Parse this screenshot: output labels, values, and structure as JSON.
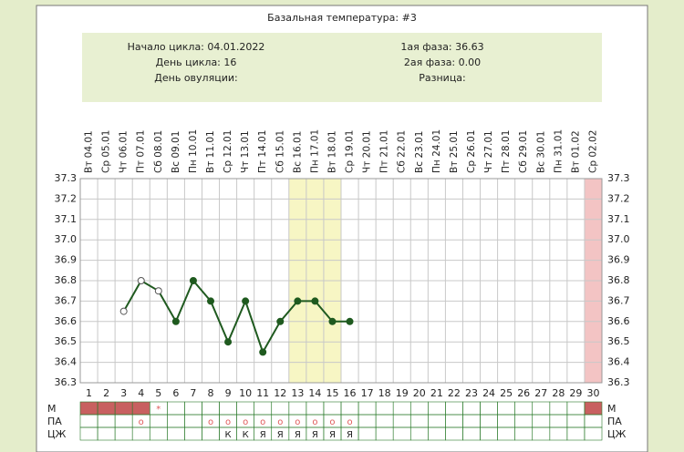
{
  "chart_data": {
    "type": "line",
    "title": "Базальная температура: #3",
    "info_left": [
      "Начало цикла: 04.01.2022",
      "День цикла: 16",
      "День овуляции:"
    ],
    "info_right": [
      "1ая фаза: 36.63",
      "2ая фаза: 0.00",
      "Разница:"
    ],
    "categories": [
      "Вт 04.01",
      "Ср 05.01",
      "Чт 06.01",
      "Пт 07.01",
      "Сб 08.01",
      "Вс 09.01",
      "Пн 10.01",
      "Вт 11.01",
      "Ср 12.01",
      "Чт 13.01",
      "Пт 14.01",
      "Сб 15.01",
      "Вс 16.01",
      "Пн 17.01",
      "Вт 18.01",
      "Ср 19.01",
      "Чт 20.01",
      "Пт 21.01",
      "Сб 22.01",
      "Вс 23.01",
      "Пн 24.01",
      "Вт 25.01",
      "Ср 26.01",
      "Чт 27.01",
      "Пт 28.01",
      "Сб 29.01",
      "Вс 30.01",
      "Пн 31.01",
      "Вт 01.02",
      "Ср 02.02"
    ],
    "day_numbers": [
      1,
      2,
      3,
      4,
      5,
      6,
      7,
      8,
      9,
      10,
      11,
      12,
      13,
      14,
      15,
      16,
      17,
      18,
      19,
      20,
      21,
      22,
      23,
      24,
      25,
      26,
      27,
      28,
      29,
      30
    ],
    "series": [
      {
        "color": "#1f5a1f",
        "values": [
          null,
          null,
          36.65,
          36.8,
          36.75,
          36.6,
          36.8,
          36.7,
          36.5,
          36.7,
          36.45,
          36.6,
          36.7,
          36.7,
          36.6,
          36.6,
          null,
          null,
          null,
          null,
          null,
          null,
          null,
          null,
          null,
          null,
          null,
          null,
          null,
          null
        ],
        "markers": [
          null,
          null,
          "open",
          "open",
          "open",
          "filled",
          "filled",
          "filled",
          "filled",
          "filled",
          "filled",
          "filled",
          "filled",
          "filled",
          "filled",
          "filled",
          null,
          null,
          null,
          null,
          null,
          null,
          null,
          null,
          null,
          null,
          null,
          null,
          null,
          null
        ]
      }
    ],
    "ylim": [
      36.3,
      37.3
    ],
    "yticks": [
      36.3,
      36.4,
      36.5,
      36.6,
      36.7,
      36.8,
      36.9,
      {
        "value": 37,
        "label": "37.0"
      },
      37.1,
      37.2,
      37.3
    ],
    "grid": true,
    "highlight_days": [
      13,
      14,
      15
    ],
    "highlight_color": "#f7f6c4",
    "red_column_days": [
      30
    ],
    "red_column_color": "#f3c4c4",
    "rows": [
      {
        "name": "М",
        "filled_days": [
          1,
          2,
          3,
          4,
          30
        ],
        "filled_color": "#c86060",
        "cells": [
          null,
          null,
          null,
          null,
          "*",
          null,
          null,
          null,
          null,
          null,
          null,
          null,
          null,
          null,
          null,
          null,
          null,
          null,
          null,
          null,
          null,
          null,
          null,
          null,
          null,
          null,
          null,
          null,
          null,
          null
        ]
      },
      {
        "name": "ПА",
        "cells": [
          null,
          null,
          null,
          "o",
          null,
          null,
          null,
          "o",
          "o",
          "o",
          "o",
          "o",
          "o",
          "o",
          "o",
          "o",
          null,
          null,
          null,
          null,
          null,
          null,
          null,
          null,
          null,
          null,
          null,
          null,
          null,
          null
        ]
      },
      {
        "name": "ЦЖ",
        "cells": [
          null,
          null,
          null,
          null,
          null,
          null,
          null,
          null,
          "К",
          "К",
          "Я",
          "Я",
          "Я",
          "Я",
          "Я",
          "Я",
          null,
          null,
          null,
          null,
          null,
          null,
          null,
          null,
          null,
          null,
          null,
          null,
          null,
          null
        ]
      }
    ]
  }
}
